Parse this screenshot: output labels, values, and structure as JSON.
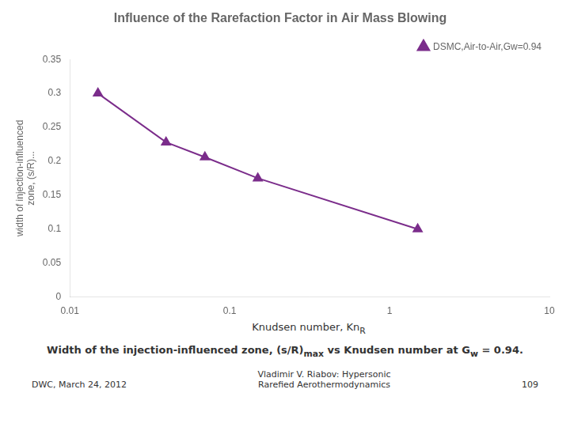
{
  "chart_data": {
    "type": "line",
    "title": "Influence of the Rarefaction Factor in Air Mass Blowing",
    "xlabel": "Knudsen number, Kn",
    "xlabel_subscript": "R",
    "ylabel": [
      "width of injection-influenced",
      "zone, (s/R)..."
    ],
    "x": [
      0.015,
      0.04,
      0.07,
      0.15,
      1.5
    ],
    "series": [
      {
        "name": "DSMC,Air-to-Air,Gw=0.94",
        "color": "#7B2D8B",
        "marker": "triangle",
        "values": [
          0.3,
          0.228,
          0.206,
          0.175,
          0.1
        ]
      }
    ],
    "xlim": [
      0.01,
      10
    ],
    "xticks": [
      0.01,
      0.1,
      1,
      10
    ],
    "ylim": [
      0,
      0.35
    ],
    "yticks": [
      0,
      0.05,
      0.1,
      0.15,
      0.2,
      0.25,
      0.3,
      0.35
    ],
    "log": "x",
    "grid": false,
    "legend": "upper right",
    "caption": [
      "Width of the injection-influenced zone, (s/R)",
      "max",
      " vs Knudsen number at G",
      "w",
      " = 0.94."
    ],
    "footer": [
      "DWC, March 24, 2012",
      "Vladimir V. Riabov: Hypersonic\nRarefied Aerothermodynamics",
      "109"
    ]
  }
}
